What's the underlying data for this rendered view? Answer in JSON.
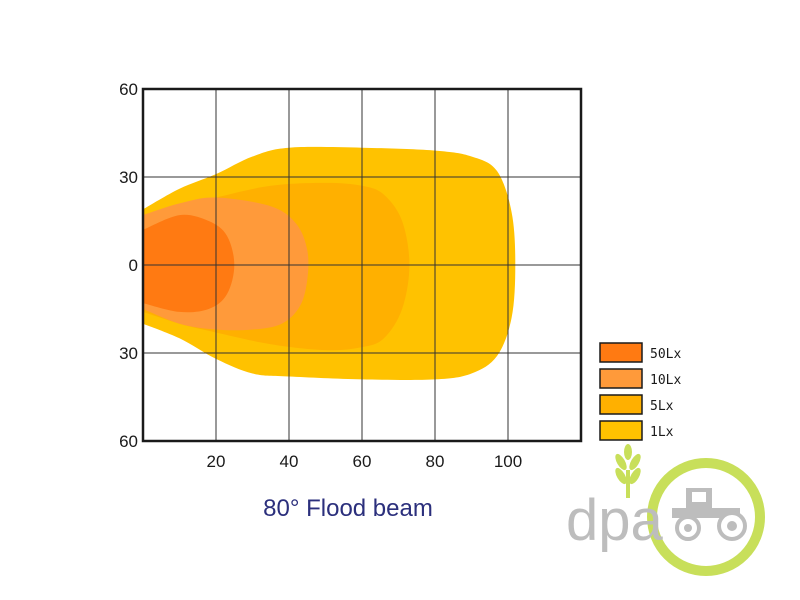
{
  "chart_data": {
    "type": "area",
    "title": "80° Flood beam",
    "xlabel": "",
    "ylabel": "",
    "xlim": [
      0,
      120
    ],
    "ylim": [
      -60,
      60
    ],
    "x_ticks": [
      20,
      40,
      60,
      80,
      100
    ],
    "y_ticks": [
      60,
      30,
      0,
      30,
      60
    ],
    "grid": true,
    "legend_position": "bottom-right",
    "series": [
      {
        "name": "1Lx",
        "color": "#ffc200",
        "outline": [
          [
            0,
            19
          ],
          [
            10,
            26
          ],
          [
            20,
            31
          ],
          [
            30,
            37
          ],
          [
            40,
            40
          ],
          [
            60,
            40
          ],
          [
            80,
            39
          ],
          [
            90,
            37
          ],
          [
            97,
            32
          ],
          [
            101,
            18
          ],
          [
            102,
            0
          ],
          [
            101,
            -18
          ],
          [
            97,
            -31
          ],
          [
            90,
            -37
          ],
          [
            80,
            -39
          ],
          [
            60,
            -39
          ],
          [
            40,
            -38
          ],
          [
            30,
            -37
          ],
          [
            20,
            -32
          ],
          [
            10,
            -25
          ],
          [
            0,
            -20
          ]
        ]
      },
      {
        "name": "5Lx",
        "color": "#ffb000",
        "outline": [
          [
            0,
            15
          ],
          [
            10,
            20
          ],
          [
            20,
            23
          ],
          [
            35,
            27
          ],
          [
            50,
            28
          ],
          [
            60,
            27
          ],
          [
            66,
            24
          ],
          [
            71,
            15
          ],
          [
            73,
            0
          ],
          [
            71,
            -15
          ],
          [
            66,
            -25
          ],
          [
            60,
            -28
          ],
          [
            50,
            -29
          ],
          [
            35,
            -27
          ],
          [
            20,
            -23
          ],
          [
            10,
            -20
          ],
          [
            0,
            -16
          ]
        ]
      },
      {
        "name": "10Lx",
        "color": "#ff9a3a",
        "outline": [
          [
            0,
            17
          ],
          [
            10,
            21
          ],
          [
            20,
            23
          ],
          [
            35,
            20
          ],
          [
            42,
            14
          ],
          [
            45,
            5
          ],
          [
            45,
            -5
          ],
          [
            43,
            -14
          ],
          [
            38,
            -20
          ],
          [
            30,
            -22
          ],
          [
            20,
            -22
          ],
          [
            10,
            -20
          ],
          [
            0,
            -15
          ]
        ]
      },
      {
        "name": "50Lx",
        "color": "#ff7a12",
        "outline": [
          [
            0,
            12
          ],
          [
            10,
            17
          ],
          [
            18,
            15
          ],
          [
            23,
            10
          ],
          [
            25,
            0
          ],
          [
            23,
            -10
          ],
          [
            18,
            -15
          ],
          [
            10,
            -16
          ],
          [
            0,
            -13
          ]
        ]
      }
    ]
  },
  "watermark": {
    "text": "dpa",
    "text_color": "#bdbdbd",
    "ring_color": "#c8df5a",
    "icon": "tractor-icon",
    "wheat_icon": "wheat-icon"
  }
}
